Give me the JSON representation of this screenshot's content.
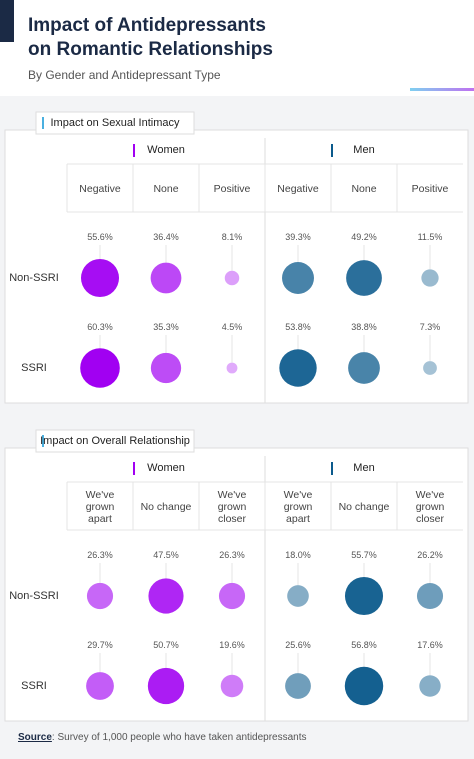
{
  "header": {
    "title": "Impact of Antidepressants on Romantic Relationships",
    "subtitle": "By Gender and Antidepressant Type"
  },
  "chart_data": [
    {
      "type": "bubble",
      "title": "Impact on Sexual Intimacy",
      "groups": [
        {
          "name": "Women",
          "color": "#a100f2",
          "categories": [
            "Negative",
            "None",
            "Positive"
          ]
        },
        {
          "name": "Men",
          "color": "#0b5a8c",
          "categories": [
            "Negative",
            "None",
            "Positive"
          ]
        }
      ],
      "series": [
        {
          "name": "Non-SSRI",
          "values": [
            55.6,
            36.4,
            8.1,
            39.3,
            49.2,
            11.5
          ],
          "value_labels": [
            "55.6%",
            "36.4%",
            "8.1%",
            "39.3%",
            "49.2%",
            "11.5%"
          ]
        },
        {
          "name": "SSRI",
          "values": [
            60.3,
            35.3,
            4.5,
            53.8,
            38.8,
            7.3
          ],
          "value_labels": [
            "60.3%",
            "35.3%",
            "4.5%",
            "53.8%",
            "38.8%",
            "7.3%"
          ]
        }
      ]
    },
    {
      "type": "bubble",
      "title": "Impact on Overall Relationship",
      "groups": [
        {
          "name": "Women",
          "color": "#a100f2",
          "categories": [
            "We've grown apart",
            "No change",
            "We've grown closer"
          ]
        },
        {
          "name": "Men",
          "color": "#0b5a8c",
          "categories": [
            "We've grown apart",
            "No change",
            "We've grown closer"
          ]
        }
      ],
      "series": [
        {
          "name": "Non-SSRI",
          "values": [
            26.3,
            47.5,
            26.3,
            18.0,
            55.7,
            26.2
          ],
          "value_labels": [
            "26.3%",
            "47.5%",
            "26.3%",
            "18.0%",
            "55.7%",
            "26.2%"
          ]
        },
        {
          "name": "SSRI",
          "values": [
            29.7,
            50.7,
            19.6,
            25.6,
            56.8,
            17.6
          ],
          "value_labels": [
            "29.7%",
            "50.7%",
            "19.6%",
            "25.6%",
            "56.8%",
            "17.6%"
          ]
        }
      ]
    }
  ],
  "footer": {
    "label": "Source",
    "text": ": Survey of 1,000 people who have taken antidepressants"
  }
}
